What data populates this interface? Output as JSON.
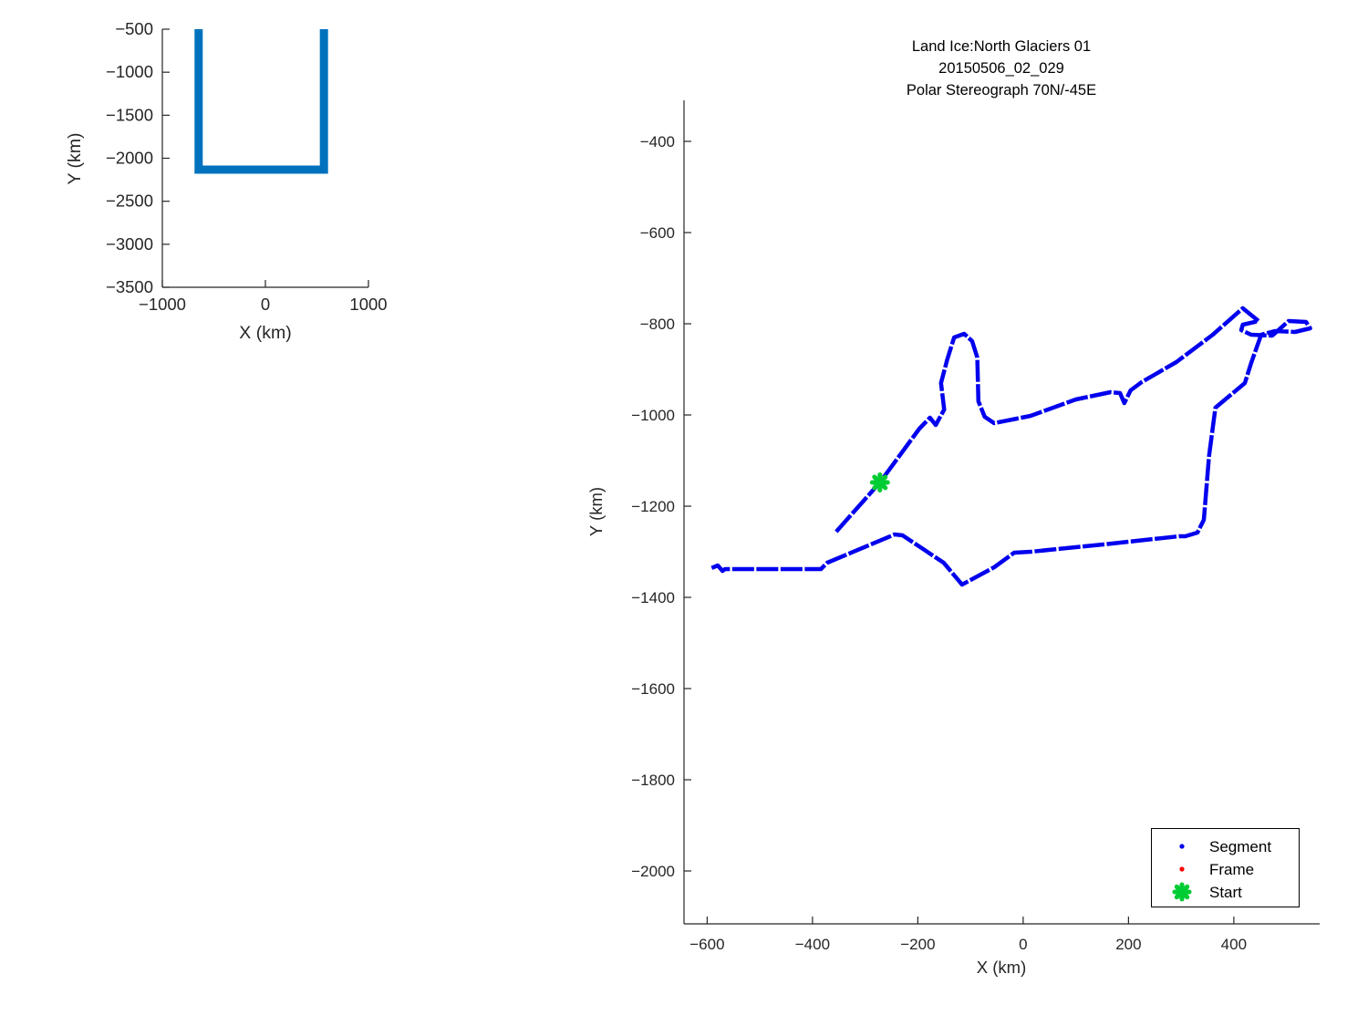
{
  "window": {
    "background": "#ffffff"
  },
  "chart_data": [
    {
      "id": "overview-inset",
      "type": "line",
      "title": "",
      "xlabel": "X (km)",
      "ylabel": "Y (km)",
      "xlim": [
        -1000,
        1000
      ],
      "ylim": [
        -3500,
        -500
      ],
      "xticks": [
        -1000,
        0,
        1000
      ],
      "yticks": [
        -500,
        -1000,
        -1500,
        -2000,
        -2500,
        -3000,
        -3500
      ],
      "grid": false,
      "line_color": "#0072bd",
      "line_style": "solid-thick",
      "points": [
        [
          -648,
          -500
        ],
        [
          -648,
          -2132
        ],
        [
          568,
          -2132
        ],
        [
          568,
          -500
        ]
      ]
    },
    {
      "id": "flight-track",
      "type": "line",
      "title_lines": [
        "Land Ice:North Glaciers 01",
        "20150506_02_029",
        "Polar Stereograph 70N/-45E"
      ],
      "xlabel": "X (km)",
      "ylabel": "Y (km)",
      "xlim": [
        -644,
        563
      ],
      "ylim": [
        -2116,
        -310
      ],
      "xticks": [
        -600,
        -400,
        -200,
        0,
        200,
        400
      ],
      "yticks": [
        -400,
        -600,
        -800,
        -1000,
        -1200,
        -1400,
        -1600,
        -1800,
        -2000
      ],
      "grid": false,
      "segment_color": "#0000ee",
      "frame_color": "#ff0000",
      "start_color": "#00cc33",
      "marker_style": "dotted-track",
      "track_points": [
        [
          -355,
          -1256
        ],
        [
          -272,
          -1148
        ],
        [
          -197,
          -1030
        ],
        [
          -177,
          -1006
        ],
        [
          -166,
          -1022
        ],
        [
          -150,
          -988
        ],
        [
          -156,
          -930
        ],
        [
          -144,
          -878
        ],
        [
          -131,
          -830
        ],
        [
          -112,
          -822
        ],
        [
          -97,
          -838
        ],
        [
          -87,
          -874
        ],
        [
          -85,
          -970
        ],
        [
          -73,
          -1004
        ],
        [
          -55,
          -1018
        ],
        [
          14,
          -1002
        ],
        [
          100,
          -966
        ],
        [
          166,
          -950
        ],
        [
          184,
          -952
        ],
        [
          192,
          -974
        ],
        [
          204,
          -946
        ],
        [
          225,
          -928
        ],
        [
          291,
          -884
        ],
        [
          360,
          -824
        ],
        [
          417,
          -766
        ],
        [
          447,
          -794
        ],
        [
          417,
          -802
        ],
        [
          414,
          -814
        ],
        [
          433,
          -824
        ],
        [
          473,
          -826
        ],
        [
          504,
          -794
        ],
        [
          537,
          -796
        ],
        [
          545,
          -810
        ],
        [
          516,
          -818
        ],
        [
          478,
          -816
        ],
        [
          452,
          -824
        ],
        [
          433,
          -886
        ],
        [
          421,
          -930
        ],
        [
          365,
          -984
        ],
        [
          353,
          -1090
        ],
        [
          343,
          -1230
        ],
        [
          331,
          -1258
        ],
        [
          308,
          -1266
        ],
        [
          296,
          -1266
        ],
        [
          152,
          -1284
        ],
        [
          14,
          -1300
        ],
        [
          -17,
          -1302
        ],
        [
          -55,
          -1334
        ],
        [
          -116,
          -1372
        ],
        [
          -151,
          -1324
        ],
        [
          -229,
          -1264
        ],
        [
          -244,
          -1262
        ],
        [
          -372,
          -1324
        ],
        [
          -384,
          -1338
        ],
        [
          -566,
          -1338
        ],
        [
          -571,
          -1342
        ],
        [
          -580,
          -1330
        ],
        [
          -592,
          -1336
        ]
      ],
      "start_point": [
        -272,
        -1148
      ],
      "legend": {
        "position": "southeast",
        "entries": [
          {
            "label": "Segment",
            "marker": "dot",
            "color": "#0000ee"
          },
          {
            "label": "Frame",
            "marker": "dot",
            "color": "#ff0000"
          },
          {
            "label": "Start",
            "marker": "star",
            "color": "#00cc33"
          }
        ]
      }
    }
  ]
}
